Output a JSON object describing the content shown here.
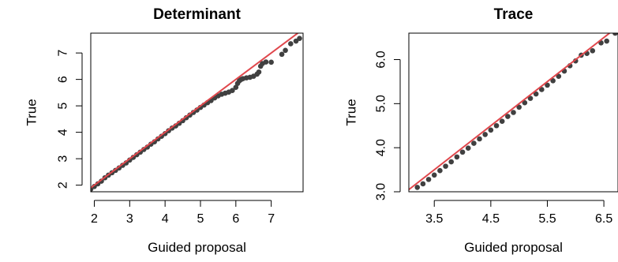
{
  "chart_data": [
    {
      "type": "scatter",
      "title": "Determinant",
      "xlabel": "Guided proposal",
      "ylabel": "True",
      "xlim": [
        1.9,
        7.9
      ],
      "ylim": [
        1.75,
        7.75
      ],
      "xticks": [
        2,
        3,
        4,
        5,
        6,
        7
      ],
      "yticks": [
        2,
        3,
        4,
        5,
        6,
        7
      ],
      "grid": false,
      "reference_line": {
        "x": [
          1.9,
          7.9
        ],
        "y": [
          1.9,
          7.9
        ],
        "color": "#e0474c"
      },
      "point_color": "#404040",
      "series": [
        {
          "values": [
            [
              1.9,
              1.85
            ],
            [
              2.0,
              1.95
            ],
            [
              2.1,
              2.05
            ],
            [
              2.2,
              2.15
            ],
            [
              2.3,
              2.28
            ],
            [
              2.4,
              2.38
            ],
            [
              2.5,
              2.47
            ],
            [
              2.6,
              2.56
            ],
            [
              2.7,
              2.65
            ],
            [
              2.8,
              2.75
            ],
            [
              2.9,
              2.84
            ],
            [
              3.0,
              2.95
            ],
            [
              3.1,
              3.05
            ],
            [
              3.2,
              3.15
            ],
            [
              3.3,
              3.25
            ],
            [
              3.4,
              3.35
            ],
            [
              3.5,
              3.44
            ],
            [
              3.6,
              3.55
            ],
            [
              3.7,
              3.64
            ],
            [
              3.8,
              3.75
            ],
            [
              3.9,
              3.85
            ],
            [
              4.0,
              3.95
            ],
            [
              4.1,
              4.06
            ],
            [
              4.2,
              4.16
            ],
            [
              4.3,
              4.24
            ],
            [
              4.4,
              4.34
            ],
            [
              4.5,
              4.44
            ],
            [
              4.6,
              4.55
            ],
            [
              4.7,
              4.65
            ],
            [
              4.8,
              4.75
            ],
            [
              4.9,
              4.84
            ],
            [
              5.0,
              4.94
            ],
            [
              5.1,
              5.03
            ],
            [
              5.2,
              5.12
            ],
            [
              5.3,
              5.2
            ],
            [
              5.4,
              5.3
            ],
            [
              5.5,
              5.38
            ],
            [
              5.6,
              5.44
            ],
            [
              5.7,
              5.48
            ],
            [
              5.8,
              5.52
            ],
            [
              5.9,
              5.58
            ],
            [
              6.0,
              5.7
            ],
            [
              6.05,
              5.85
            ],
            [
              6.1,
              5.95
            ],
            [
              6.15,
              6.0
            ],
            [
              6.2,
              6.03
            ],
            [
              6.3,
              6.06
            ],
            [
              6.4,
              6.08
            ],
            [
              6.5,
              6.12
            ],
            [
              6.6,
              6.2
            ],
            [
              6.65,
              6.28
            ],
            [
              6.7,
              6.5
            ],
            [
              6.75,
              6.6
            ],
            [
              6.85,
              6.66
            ],
            [
              7.0,
              6.65
            ],
            [
              7.3,
              6.95
            ],
            [
              7.4,
              7.1
            ],
            [
              7.55,
              7.35
            ],
            [
              7.7,
              7.45
            ],
            [
              7.8,
              7.55
            ]
          ]
        }
      ]
    },
    {
      "type": "scatter",
      "title": "Trace",
      "xlabel": "Guided proposal",
      "ylabel": "True",
      "xlim": [
        3.05,
        6.75
      ],
      "ylim": [
        3.0,
        6.6
      ],
      "xticks": [
        3.5,
        4.5,
        5.5,
        6.5
      ],
      "xtick_labels": [
        "3.5",
        "4.5",
        "5.5",
        "6.5"
      ],
      "yticks": [
        3.0,
        4.0,
        5.0,
        6.0
      ],
      "ytick_labels": [
        "3.0",
        "4.0",
        "5.0",
        "6.0"
      ],
      "grid": false,
      "reference_line": {
        "x": [
          3.05,
          6.75
        ],
        "y": [
          3.05,
          6.75
        ],
        "color": "#e0474c"
      },
      "point_color": "#404040",
      "series": [
        {
          "values": [
            [
              3.2,
              3.1
            ],
            [
              3.3,
              3.18
            ],
            [
              3.4,
              3.28
            ],
            [
              3.5,
              3.38
            ],
            [
              3.6,
              3.48
            ],
            [
              3.7,
              3.58
            ],
            [
              3.8,
              3.68
            ],
            [
              3.9,
              3.79
            ],
            [
              4.0,
              3.9
            ],
            [
              4.1,
              3.99
            ],
            [
              4.2,
              4.1
            ],
            [
              4.3,
              4.2
            ],
            [
              4.4,
              4.3
            ],
            [
              4.5,
              4.4
            ],
            [
              4.6,
              4.5
            ],
            [
              4.7,
              4.6
            ],
            [
              4.8,
              4.71
            ],
            [
              4.9,
              4.8
            ],
            [
              5.0,
              4.92
            ],
            [
              5.1,
              5.02
            ],
            [
              5.2,
              5.12
            ],
            [
              5.3,
              5.22
            ],
            [
              5.4,
              5.32
            ],
            [
              5.5,
              5.42
            ],
            [
              5.6,
              5.52
            ],
            [
              5.7,
              5.62
            ],
            [
              5.8,
              5.74
            ],
            [
              5.9,
              5.86
            ],
            [
              6.0,
              5.97
            ],
            [
              6.1,
              6.1
            ],
            [
              6.2,
              6.14
            ],
            [
              6.3,
              6.2
            ],
            [
              6.45,
              6.38
            ],
            [
              6.55,
              6.42
            ],
            [
              6.7,
              6.6
            ]
          ]
        }
      ]
    }
  ]
}
